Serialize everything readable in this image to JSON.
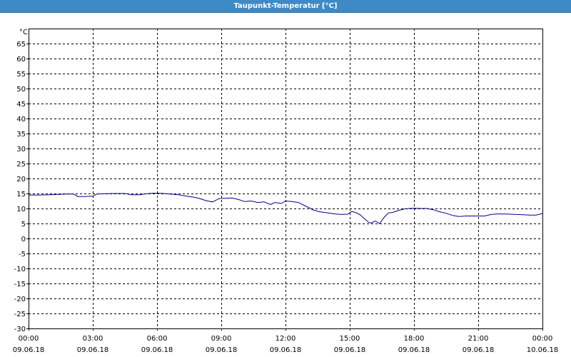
{
  "window": {
    "title": "Taupunkt-Temperatur [°C]"
  },
  "colors": {
    "line": "#00008b",
    "grid": "#000000",
    "titlebar": "#3d8ac7"
  },
  "chart_data": {
    "type": "line",
    "title": "Taupunkt-Temperatur [°C]",
    "ylabel": "°C",
    "xlabel": "",
    "ylim": [
      -30,
      70
    ],
    "yticks": [
      65,
      60,
      55,
      50,
      45,
      40,
      35,
      30,
      25,
      20,
      15,
      10,
      5,
      0,
      -5,
      -10,
      -15,
      -20,
      -25,
      -30
    ],
    "xlim": [
      0,
      24
    ],
    "xticks": [
      {
        "time": "00:00",
        "date": "09.06.18",
        "h": 0
      },
      {
        "time": "03:00",
        "date": "09.06.18",
        "h": 3
      },
      {
        "time": "06:00",
        "date": "09.06.18",
        "h": 6
      },
      {
        "time": "09:00",
        "date": "09.06.18",
        "h": 9
      },
      {
        "time": "12:00",
        "date": "09.06.18",
        "h": 12
      },
      {
        "time": "15:00",
        "date": "09.06.18",
        "h": 15
      },
      {
        "time": "18:00",
        "date": "09.06.18",
        "h": 18
      },
      {
        "time": "21:00",
        "date": "09.06.18",
        "h": 21
      },
      {
        "time": "00:00",
        "date": "10.06.18",
        "h": 24
      }
    ],
    "grid": true,
    "series": [
      {
        "x": [
          0,
          0.5,
          1.0,
          1.4,
          1.8,
          2.1,
          2.3,
          2.6,
          3.0,
          3.2,
          3.5,
          4.0,
          4.5,
          4.8,
          5.2,
          5.5,
          5.8,
          6.0,
          6.3,
          6.6,
          7.0,
          7.3,
          7.7,
          8.0,
          8.3,
          8.6,
          8.9,
          9.2,
          9.5,
          9.8,
          10.1,
          10.4,
          10.7,
          11.0,
          11.3,
          11.5,
          11.8,
          12.0,
          12.3,
          12.6,
          13.0,
          13.3,
          13.6,
          14.0,
          14.3,
          14.6,
          14.9,
          15.1,
          15.3,
          15.5,
          15.7,
          15.9,
          16.0,
          16.2,
          16.4,
          16.6,
          16.8,
          17.0,
          17.3,
          17.6,
          18.0,
          18.3,
          18.6,
          18.9,
          19.2,
          19.5,
          19.8,
          20.1,
          20.4,
          20.7,
          21.0,
          21.3,
          21.6,
          21.9,
          22.2,
          22.5,
          22.8,
          23.1,
          23.4,
          23.7,
          24.0
        ],
        "values": [
          14.5,
          14.5,
          14.6,
          14.7,
          14.8,
          14.8,
          14.0,
          14.0,
          14.1,
          14.8,
          14.9,
          15.0,
          15.0,
          14.6,
          14.6,
          14.9,
          15.1,
          15.1,
          15.0,
          14.8,
          14.6,
          14.2,
          13.8,
          13.3,
          12.6,
          12.2,
          13.3,
          13.4,
          13.5,
          13.0,
          12.3,
          12.5,
          12.0,
          12.2,
          11.3,
          12.0,
          11.7,
          12.5,
          12.3,
          12.0,
          10.6,
          9.5,
          8.9,
          8.5,
          8.2,
          8.0,
          8.1,
          9.0,
          8.6,
          7.8,
          6.5,
          5.3,
          5.2,
          5.8,
          5.0,
          7.0,
          8.5,
          8.7,
          9.4,
          9.9,
          10.1,
          10.0,
          10.0,
          9.6,
          8.9,
          8.4,
          7.7,
          7.3,
          7.5,
          7.5,
          7.5,
          7.5,
          8.0,
          8.2,
          8.2,
          8.1,
          8.0,
          7.9,
          7.8,
          7.8,
          8.3
        ]
      }
    ]
  }
}
